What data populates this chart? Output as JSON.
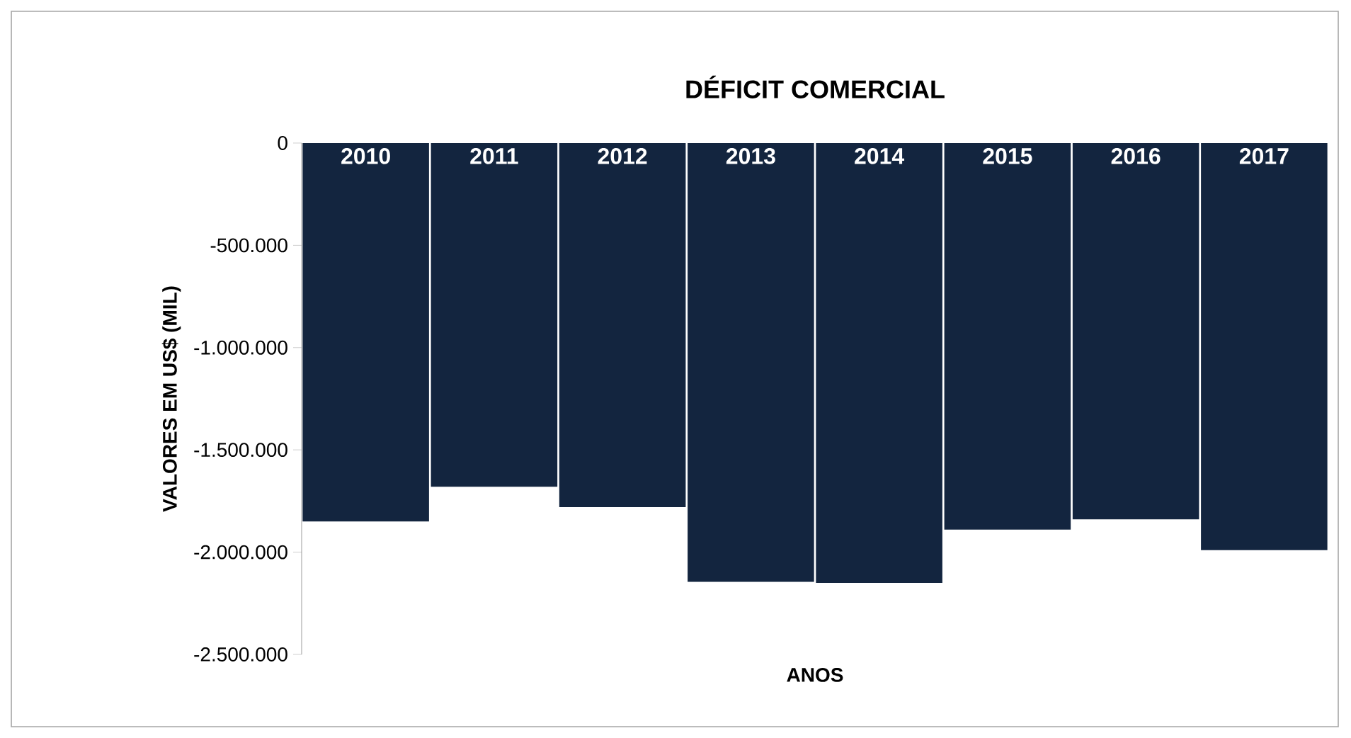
{
  "chart_data": {
    "type": "bar",
    "title": "DÉFICIT COMERCIAL",
    "xlabel": "ANOS",
    "ylabel": "VALORES EM US$ (MIL)",
    "categories": [
      "2010",
      "2011",
      "2012",
      "2013",
      "2014",
      "2015",
      "2016",
      "2017"
    ],
    "values": [
      -1850000,
      -1680000,
      -1780000,
      -2145000,
      -2150000,
      -1890000,
      -1840000,
      -1990000
    ],
    "color": "#13253f",
    "ylim": [
      -2500000,
      0
    ],
    "yticks": [
      0,
      {
        "value": -500000,
        "label": "-500.000"
      },
      {
        "value": -1000000,
        "label": "-1.000.000"
      },
      {
        "value": -1500000,
        "label": "-1.500.000"
      },
      {
        "value": -2000000,
        "label": "-2.000.000"
      },
      {
        "value": -2500000,
        "label": "-2.500.000"
      }
    ]
  }
}
